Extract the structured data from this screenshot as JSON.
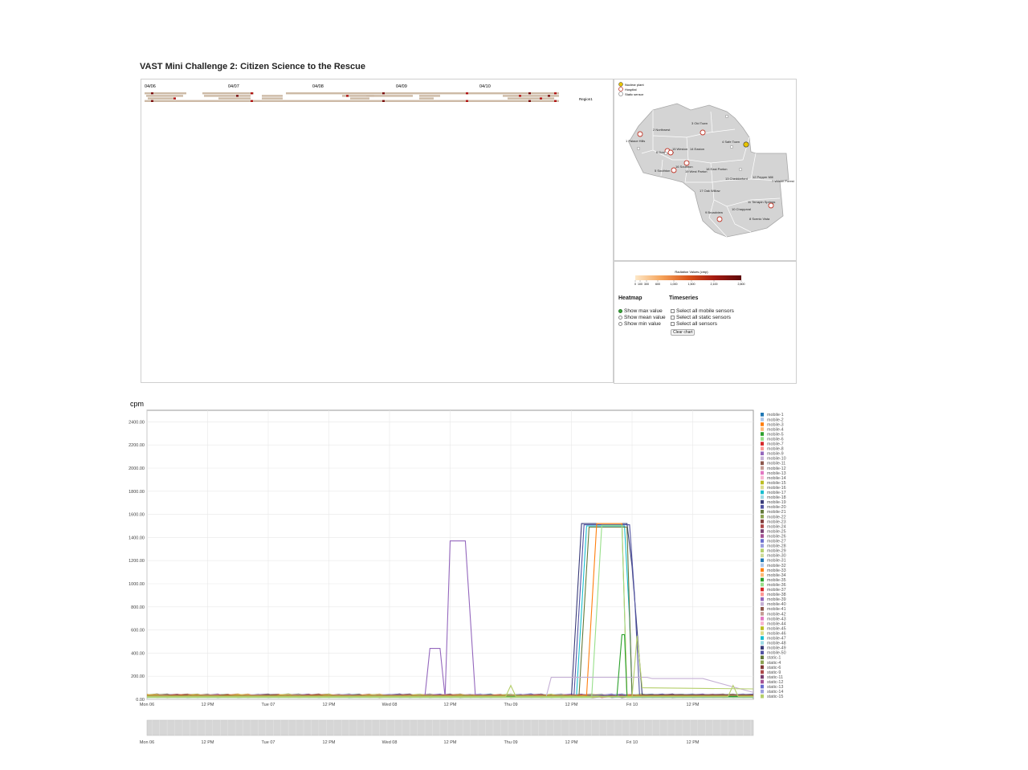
{
  "title": "VAST Mini Challenge 2: Citizen Science to the Rescue",
  "heatmap": {
    "dates": [
      "04/06",
      "04/07",
      "04/08",
      "04/09",
      "04/10"
    ],
    "region_label": "Region1"
  },
  "map": {
    "legend": [
      "Nuclear plant",
      "Hospital",
      "Static sensor"
    ],
    "regions": [
      "1 Palace Hills",
      "2 Northwest",
      "3 Old Town",
      "4 Safe Town",
      "5 Southton",
      "6 Downtown",
      "7 Wilson Forest",
      "8 Scenic Vista",
      "9 Broadview",
      "10 Chapparal",
      "11 Terrapin Springs",
      "12 Pepper Mill",
      "13 Cheddarford",
      "14 Easton",
      "15 Weston",
      "16 Southton",
      "17 Oak Willow",
      "18 East Parton",
      "19 West Parton"
    ]
  },
  "colorscale": {
    "title": "Radiation Values (cmp)",
    "ticks": [
      "0",
      "100",
      "300",
      "600",
      "1,000",
      "1,500",
      "2,100",
      "2,800"
    ],
    "colors": [
      "#fde8c8",
      "#f5a35a",
      "#d9541a",
      "#a31a12",
      "#5e0a0a"
    ]
  },
  "controls": {
    "heatmap_heading": "Heatmap",
    "timeseries_heading": "Timeseries",
    "heatmap_options": [
      "Show max value",
      "Show mean value",
      "Show min value"
    ],
    "heatmap_selected": 0,
    "timeseries_options": [
      "Select all mobile sensors",
      "Select all static sensors",
      "Select all sensors"
    ],
    "clear_label": "Clear chart"
  },
  "chart_data": {
    "type": "line",
    "ylabel": "cpm",
    "ylim": [
      0,
      2500
    ],
    "yticks": [
      "0.00",
      "200.00",
      "400.00",
      "600.00",
      "800.00",
      "1000.00",
      "1200.00",
      "1400.00",
      "1600.00",
      "1800.00",
      "2000.00",
      "2200.00",
      "2400.00"
    ],
    "xlim_hours": [
      0,
      120
    ],
    "xticks": [
      "Mon 06",
      "12 PM",
      "Tue 07",
      "12 PM",
      "Wed 08",
      "12 PM",
      "Thu 09",
      "12 PM",
      "Fri 10",
      "12 PM"
    ],
    "grid": true,
    "legend_position": "right",
    "series_names": [
      "mobile-1",
      "mobile-2",
      "mobile-3",
      "mobile-4",
      "mobile-5",
      "mobile-6",
      "mobile-7",
      "mobile-8",
      "mobile-9",
      "mobile-10",
      "mobile-11",
      "mobile-12",
      "mobile-13",
      "mobile-14",
      "mobile-15",
      "mobile-16",
      "mobile-17",
      "mobile-18",
      "mobile-19",
      "mobile-20",
      "mobile-21",
      "mobile-22",
      "mobile-23",
      "mobile-24",
      "mobile-25",
      "mobile-26",
      "mobile-27",
      "mobile-28",
      "mobile-29",
      "mobile-30",
      "mobile-31",
      "mobile-32",
      "mobile-33",
      "mobile-34",
      "mobile-35",
      "mobile-36",
      "mobile-37",
      "mobile-38",
      "mobile-39",
      "mobile-40",
      "mobile-41",
      "mobile-42",
      "mobile-43",
      "mobile-44",
      "mobile-45",
      "mobile-46",
      "mobile-47",
      "mobile-48",
      "mobile-49",
      "mobile-50",
      "static-1",
      "static-4",
      "static-6",
      "static-9",
      "static-11",
      "static-12",
      "static-13",
      "static-14",
      "static-15"
    ],
    "series_colors": [
      "#1f77b4",
      "#aec7e8",
      "#ff7f0e",
      "#ffbb78",
      "#2ca02c",
      "#98df8a",
      "#d62728",
      "#ff9896",
      "#9467bd",
      "#c5b0d5",
      "#8c564b",
      "#c49c94",
      "#e377c2",
      "#f7b6d2",
      "#bcbd22",
      "#dbdb8d",
      "#17becf",
      "#9edae5",
      "#393b79",
      "#5254a3",
      "#637939",
      "#8ca252",
      "#843c39",
      "#ad494a",
      "#7b4173",
      "#a55194",
      "#6b6ecf",
      "#9c9ede",
      "#b5cf6b",
      "#cedb9c"
    ],
    "highlighted_series": [
      {
        "name": "mobile-9",
        "points": [
          [
            0,
            20
          ],
          [
            55,
            20
          ],
          [
            56,
            440
          ],
          [
            58,
            440
          ],
          [
            59,
            20
          ],
          [
            60,
            1370
          ],
          [
            63,
            1370
          ],
          [
            65,
            20
          ],
          [
            120,
            20
          ]
        ]
      },
      {
        "name": "mobile-19",
        "points": [
          [
            0,
            20
          ],
          [
            84,
            20
          ],
          [
            86,
            1520
          ],
          [
            95,
            1520
          ],
          [
            96,
            1150
          ],
          [
            98,
            40
          ],
          [
            120,
            40
          ]
        ]
      },
      {
        "name": "mobile-20",
        "points": [
          [
            0,
            20
          ],
          [
            84.5,
            20
          ],
          [
            86.5,
            1510
          ],
          [
            95.5,
            1510
          ],
          [
            96.5,
            900
          ],
          [
            97.5,
            30
          ],
          [
            120,
            30
          ]
        ]
      },
      {
        "name": "mobile-17",
        "points": [
          [
            0,
            30
          ],
          [
            85,
            30
          ],
          [
            87,
            1500
          ],
          [
            94.5,
            1500
          ],
          [
            95.5,
            700
          ],
          [
            96,
            30
          ],
          [
            120,
            30
          ]
        ]
      },
      {
        "name": "mobile-21",
        "points": [
          [
            0,
            25
          ],
          [
            85.5,
            25
          ],
          [
            87.5,
            1490
          ],
          [
            95,
            1490
          ],
          [
            96,
            25
          ],
          [
            120,
            25
          ]
        ]
      },
      {
        "name": "mobile-3",
        "points": [
          [
            0,
            35
          ],
          [
            87,
            35
          ],
          [
            89,
            1520
          ],
          [
            94,
            1520
          ],
          [
            95,
            35
          ],
          [
            120,
            35
          ]
        ]
      },
      {
        "name": "mobile-6",
        "points": [
          [
            0,
            15
          ],
          [
            88,
            15
          ],
          [
            90,
            1505
          ],
          [
            94,
            1505
          ],
          [
            95,
            15
          ],
          [
            120,
            15
          ]
        ]
      },
      {
        "name": "mobile-10",
        "points": [
          [
            0,
            20
          ],
          [
            79,
            20
          ],
          [
            80,
            190
          ],
          [
            99,
            190
          ],
          [
            100,
            180
          ],
          [
            110,
            180
          ],
          [
            120,
            60
          ]
        ]
      },
      {
        "name": "mobile-5",
        "points": [
          [
            0,
            25
          ],
          [
            93,
            25
          ],
          [
            94,
            560
          ],
          [
            94.5,
            560
          ],
          [
            95,
            25
          ],
          [
            120,
            25
          ]
        ]
      },
      {
        "name": "mobile-29",
        "points": [
          [
            0,
            20
          ],
          [
            96,
            20
          ],
          [
            97,
            550
          ],
          [
            98,
            100
          ],
          [
            120,
            90
          ]
        ]
      },
      {
        "name": "static-15",
        "points": [
          [
            0,
            25
          ],
          [
            71,
            25
          ],
          [
            72,
            120
          ],
          [
            73,
            25
          ],
          [
            115,
            25
          ],
          [
            116,
            120
          ],
          [
            117,
            25
          ],
          [
            120,
            25
          ]
        ]
      }
    ]
  }
}
